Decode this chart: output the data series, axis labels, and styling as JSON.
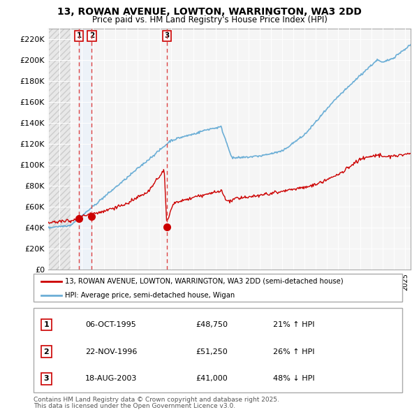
{
  "title_line1": "13, ROWAN AVENUE, LOWTON, WARRINGTON, WA3 2DD",
  "title_line2": "Price paid vs. HM Land Registry's House Price Index (HPI)",
  "ylim": [
    0,
    230000
  ],
  "yticks": [
    0,
    20000,
    40000,
    60000,
    80000,
    100000,
    120000,
    140000,
    160000,
    180000,
    200000,
    220000
  ],
  "ytick_labels": [
    "£0",
    "£20K",
    "£40K",
    "£60K",
    "£80K",
    "£100K",
    "£120K",
    "£140K",
    "£160K",
    "£180K",
    "£200K",
    "£220K"
  ],
  "xlim_start": 1993.0,
  "xlim_end": 2025.5,
  "hpi_color": "#6baed6",
  "price_color": "#cc0000",
  "marker_color": "#cc0000",
  "dashed_line_color": "#dd4444",
  "highlight_color": "#ddeeff",
  "transactions": [
    {
      "num": 1,
      "date_label": "06-OCT-1995",
      "year": 1995.77,
      "price": 48750,
      "pct": "21%",
      "dir": "↑"
    },
    {
      "num": 2,
      "date_label": "22-NOV-1996",
      "year": 1996.9,
      "price": 51250,
      "pct": "26%",
      "dir": "↑"
    },
    {
      "num": 3,
      "date_label": "18-AUG-2003",
      "year": 2003.63,
      "price": 41000,
      "pct": "48%",
      "dir": "↓"
    }
  ],
  "legend_label_price": "13, ROWAN AVENUE, LOWTON, WARRINGTON, WA3 2DD (semi-detached house)",
  "legend_label_hpi": "HPI: Average price, semi-detached house, Wigan",
  "footer_line1": "Contains HM Land Registry data © Crown copyright and database right 2025.",
  "footer_line2": "This data is licensed under the Open Government Licence v3.0.",
  "background_color": "#ffffff",
  "plot_bg_color": "#f5f5f5",
  "hatch_end_year": 1995.0
}
